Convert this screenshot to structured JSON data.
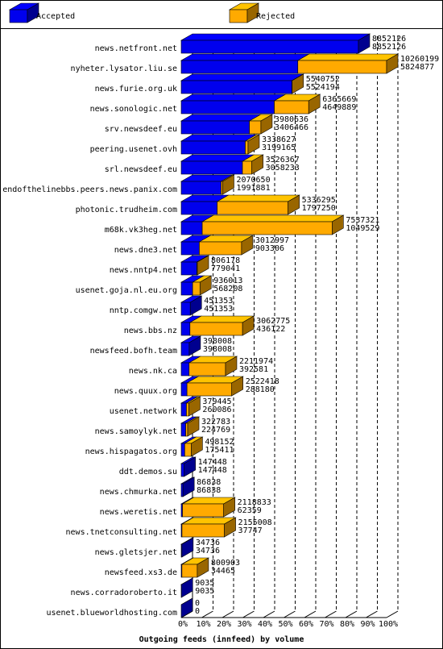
{
  "chart_data": {
    "type": "bar3d_stacked_horizontal",
    "xlabel": "Outgoing feeds (innfeed) by volume",
    "categories": [
      "news.netfront.net",
      "nyheter.lysator.liu.se",
      "news.furie.org.uk",
      "news.sonologic.net",
      "srv.newsdeef.eu",
      "peering.usenet.ovh",
      "srl.newsdeef.eu",
      "endofthelinebbs.peers.news.panix.com",
      "photonic.trudheim.com",
      "m68k.vk3heg.net",
      "news.dne3.net",
      "news.nntp4.net",
      "usenet.goja.nl.eu.org",
      "nntp.comgw.net",
      "news.bbs.nz",
      "newsfeed.bofh.team",
      "news.nk.ca",
      "news.quux.org",
      "usenet.network",
      "news.samoylyk.net",
      "news.hispagatos.org",
      "ddt.demos.su",
      "news.chmurka.net",
      "news.weretis.net",
      "news.tnetconsulting.net",
      "news.gletsjer.net",
      "newsfeed.xs3.de",
      "news.corradoroberto.it",
      "usenet.blueworldhosting.com"
    ],
    "series": [
      {
        "name": "Accepted",
        "color": "#0000ee",
        "values": [
          8852126,
          5824877,
          5524194,
          4649889,
          3406466,
          3199165,
          3058233,
          1991881,
          1797250,
          1049529,
          903306,
          779041,
          568208,
          451353,
          436122,
          398008,
          392581,
          288180,
          260086,
          224769,
          175411,
          147448,
          86838,
          62359,
          37747,
          34736,
          34465,
          9035,
          0
        ]
      },
      {
        "name": "Rejected",
        "color": "#ffaa00",
        "values": [
          0,
          4435322,
          16558,
          1715780,
          574170,
          139462,
          468134,
          78769,
          3539045,
          6487792,
          2109691,
          27137,
          367805,
          0,
          2626653,
          0,
          1819393,
          2234238,
          119359,
          98014,
          322741,
          0,
          0,
          2056474,
          2117261,
          0,
          766438,
          0,
          0
        ]
      }
    ],
    "totals": [
      8852126,
      10260199,
      5540752,
      6365669,
      3980636,
      3338627,
      3526367,
      2070650,
      5336295,
      7537321,
      3012997,
      806178,
      936013,
      451353,
      3062775,
      398008,
      2211974,
      2522418,
      379445,
      322783,
      498152,
      147448,
      86838,
      2118833,
      2155008,
      34736,
      800903,
      9035,
      0
    ],
    "xlim": [
      0,
      10260199
    ],
    "xticks": [
      {
        "value": 0,
        "label": "0%"
      },
      {
        "value": 1026019.9,
        "label": "10%"
      },
      {
        "value": 2052039.8,
        "label": "20%"
      },
      {
        "value": 3078059.7,
        "label": "30%"
      },
      {
        "value": 4104079.6,
        "label": "40%"
      },
      {
        "value": 5130099.5,
        "label": "50%"
      },
      {
        "value": 6156119.4,
        "label": "60%"
      },
      {
        "value": 7182139.3,
        "label": "70%"
      },
      {
        "value": 8208159.2,
        "label": "80%"
      },
      {
        "value": 9234179.1,
        "label": "90%"
      },
      {
        "value": 10260199,
        "label": "100%"
      }
    ],
    "grid": true
  }
}
